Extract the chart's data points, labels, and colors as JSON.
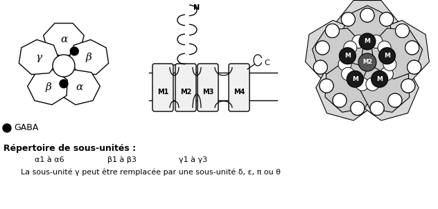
{
  "bg_color": "#ffffff",
  "fig_width": 6.32,
  "fig_height": 3.02,
  "dpi": 100,
  "text_repertoire": "Répertoire de sous-unités :",
  "text_line1_col1": "α1 à α6",
  "text_line1_col2": "β1 à β3",
  "text_line1_col3": "γ1 à γ3",
  "text_line2": "La sous-unité γ peut être remplacée par une sous-unité δ, ε, π ou θ",
  "gaba_label": "GABA",
  "label_N": "N",
  "label_C": "C",
  "label_M1": "M1",
  "label_M2": "M2",
  "label_M3": "M3",
  "label_M4": "M4",
  "subunit_labels": [
    "α",
    "β",
    "α",
    "β",
    "γ"
  ],
  "subunit_angles_deg": [
    90,
    18,
    -54,
    -126,
    162
  ]
}
